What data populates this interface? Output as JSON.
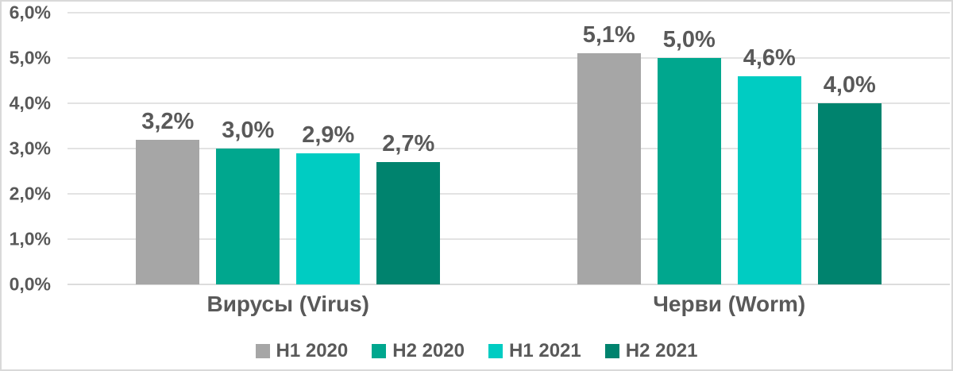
{
  "chart_data": {
    "type": "bar",
    "title": "",
    "xlabel": "",
    "ylabel": "",
    "categories": [
      "Вирусы (Virus)",
      "Черви (Worm)"
    ],
    "series": [
      {
        "name": "H1 2020",
        "color": "#A6A6A6",
        "values": [
          3.2,
          5.1
        ],
        "labels": [
          "3,2%",
          "5,1%"
        ]
      },
      {
        "name": "H2 2020",
        "color": "#00A78E",
        "values": [
          3.0,
          5.0
        ],
        "labels": [
          "3,0%",
          "5,0%"
        ]
      },
      {
        "name": "H1 2021",
        "color": "#00CCC2",
        "values": [
          2.9,
          4.6
        ],
        "labels": [
          "2,9%",
          "4,6%"
        ]
      },
      {
        "name": "H2 2021",
        "color": "#00836E",
        "values": [
          2.7,
          4.0
        ],
        "labels": [
          "2,7%",
          "4,0%"
        ]
      }
    ],
    "y_ticks": [
      "0,0%",
      "1,0%",
      "2,0%",
      "3,0%",
      "4,0%",
      "5,0%",
      "6,0%"
    ],
    "ylim": [
      0,
      6
    ],
    "grid": true,
    "legend_position": "bottom"
  },
  "colors": {
    "text": "#595959",
    "gridline": "#E3E3E3",
    "baseline": "#DCDCDC",
    "border": "#D9D9D9",
    "background": "#FFFFFF"
  }
}
